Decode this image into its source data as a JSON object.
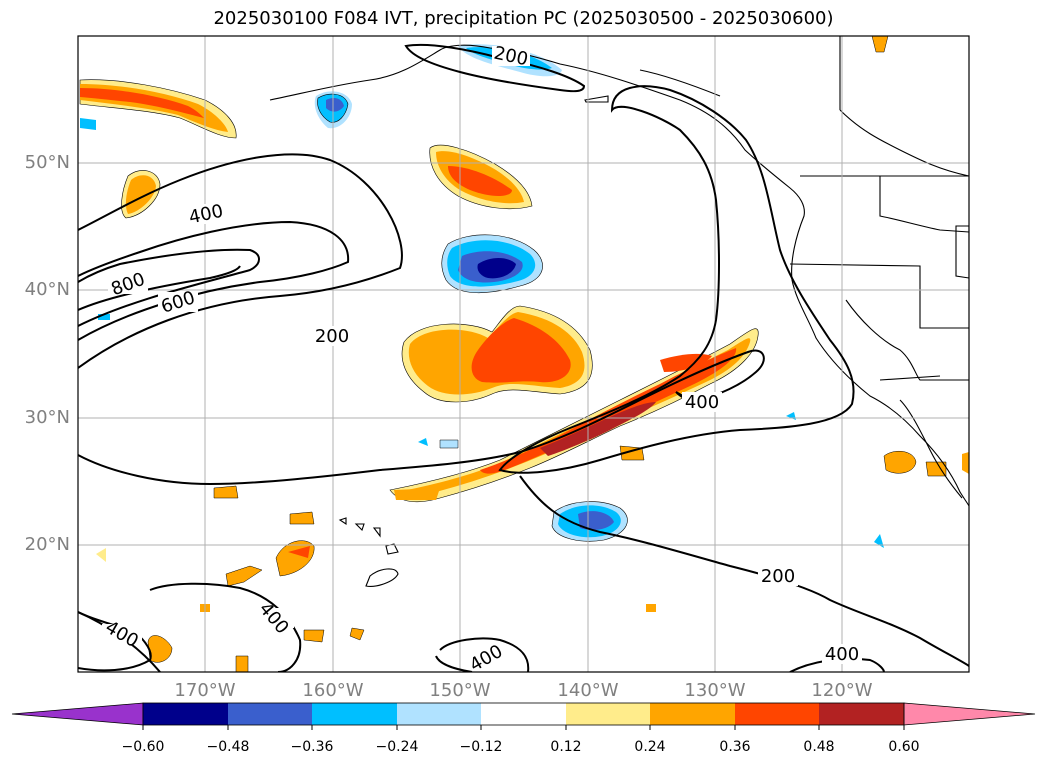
{
  "title": "2025030100 F084 IVT, precipitation PC (2025030500 - 2025030600)",
  "map": {
    "lat_labels": [
      "50°N",
      "40°N",
      "30°N",
      "20°N"
    ],
    "lon_labels": [
      "170°W",
      "160°W",
      "150°W",
      "140°W",
      "130°W",
      "120°W"
    ],
    "contour_labels": [
      "200",
      "400",
      "800",
      "600",
      "200",
      "400",
      "200",
      "400",
      "400",
      "400",
      "400"
    ],
    "contour_color": "#000000",
    "grid_color": "#b0b0b0",
    "grid": true
  },
  "colorbar": {
    "ticks": [
      "−0.60",
      "−0.48",
      "−0.36",
      "−0.24",
      "−0.12",
      "0.12",
      "0.24",
      "0.36",
      "0.48",
      "0.60"
    ],
    "colors": [
      "#9932cc",
      "#00008b",
      "#3a5fcd",
      "#00bfff",
      "#b0e2ff",
      "#ffffff",
      "#ffec8b",
      "#ffa500",
      "#ff4500",
      "#b22222",
      "#ff88aa"
    ],
    "extend": "both"
  }
}
